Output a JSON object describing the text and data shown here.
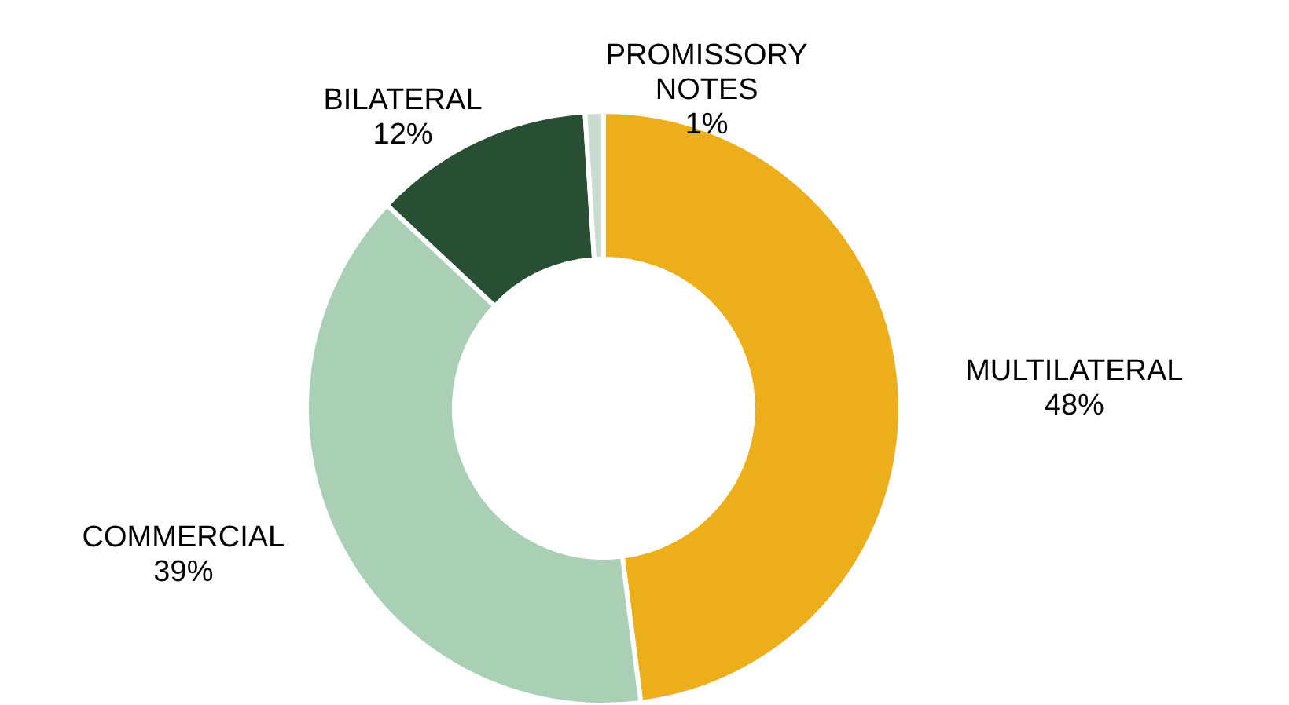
{
  "chart_data": {
    "type": "donut",
    "categories": [
      "MULTILATERAL",
      "COMMERCIAL",
      "BILATERAL",
      "PROMISSORY NOTES"
    ],
    "values": [
      48,
      39,
      12,
      1
    ],
    "value_labels": [
      "48%",
      "39%",
      "12%",
      "1%"
    ],
    "colors": [
      "#edae1b",
      "#a9cfb4",
      "#284f33",
      "#c9dccf"
    ]
  }
}
